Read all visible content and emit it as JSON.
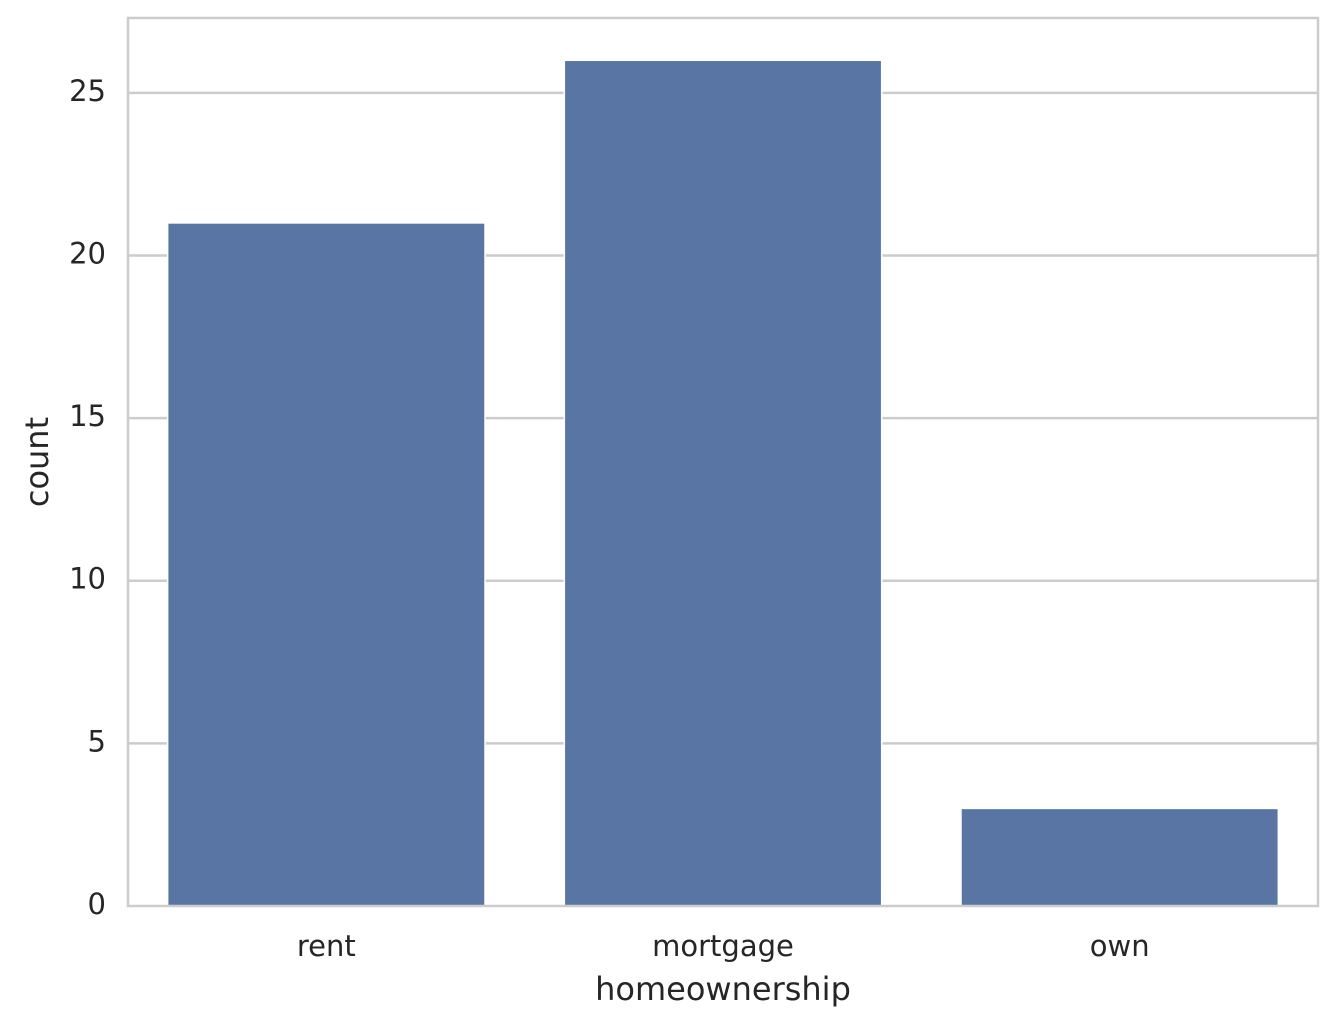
{
  "chart_data": {
    "type": "bar",
    "title": "",
    "xlabel": "homeownership",
    "ylabel": "count",
    "categories": [
      "rent",
      "mortgage",
      "own"
    ],
    "values": [
      21,
      26,
      3
    ],
    "ylim": [
      0,
      27.3
    ],
    "yticks": [
      0,
      5,
      10,
      15,
      20,
      25
    ],
    "grid": true,
    "bar_color": "#5975a4",
    "grid_color": "#cccccc",
    "background": "#ffffff"
  }
}
